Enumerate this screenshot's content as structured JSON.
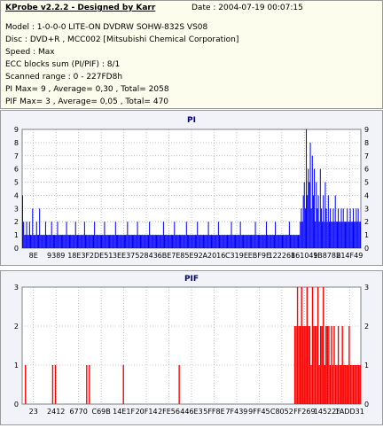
{
  "header": {
    "title": "KProbe v2.2.2 - Designed by Karr",
    "date": "Date : 2004-07-19 00:07:15",
    "lines": [
      "Model : 1-0-0-0 LITE-ON DVDRW SOHW-832S  VS08",
      "Disc : DVD+R , MCC002 [Mitsubishi Chemical Corporation]",
      "Speed : Max",
      "ECC blocks sum (PI/PIF) : 8/1",
      "Scanned range : 0 - 227FD8h",
      "PI Max= 9 , Average= 0,30 , Total= 2058",
      "PIF Max= 3 , Average= 0,05 , Total= 470"
    ]
  },
  "colors": {
    "pi": "#0000ff",
    "pif": "#ff0000",
    "title": "#000080",
    "grid": "#9a9a9a"
  },
  "chart_data": [
    {
      "type": "bar",
      "title": "PI",
      "ylim": [
        0,
        9
      ],
      "y_ticks": [
        0,
        1,
        2,
        3,
        4,
        5,
        6,
        7,
        8,
        9
      ],
      "x_tick_labels": [
        "8E",
        "9389",
        "18E3F",
        "2DE51",
        "3EE37",
        "52843",
        "6BE7E",
        "85E92",
        "A2016",
        "C319E",
        "EBF9E",
        "122268",
        "161049",
        "1B878B",
        "214F49"
      ],
      "grid": "dashed vertical and horizontal",
      "values": [
        4,
        2,
        1,
        1,
        2,
        1,
        1,
        2,
        1,
        1,
        3,
        1,
        1,
        1,
        2,
        1,
        1,
        3,
        1,
        1,
        1,
        1,
        1,
        2,
        1,
        1,
        1,
        1,
        1,
        2,
        1,
        1,
        1,
        1,
        1,
        2,
        1,
        1,
        1,
        1,
        1,
        1,
        1,
        1,
        2,
        1,
        1,
        1,
        1,
        1,
        1,
        1,
        1,
        2,
        1,
        1,
        1,
        1,
        1,
        1,
        1,
        1,
        2,
        1,
        1,
        1,
        1,
        1,
        1,
        1,
        1,
        1,
        2,
        1,
        1,
        1,
        1,
        1,
        1,
        1,
        1,
        1,
        2,
        1,
        1,
        1,
        1,
        1,
        1,
        1,
        1,
        1,
        1,
        2,
        1,
        1,
        1,
        1,
        1,
        1,
        1,
        1,
        1,
        1,
        1,
        2,
        1,
        1,
        1,
        1,
        1,
        1,
        1,
        1,
        1,
        2,
        1,
        1,
        1,
        1,
        1,
        1,
        1,
        1,
        1,
        1,
        1,
        2,
        1,
        1,
        1,
        1,
        1,
        1,
        1,
        1,
        1,
        1,
        1,
        1,
        1,
        2,
        1,
        1,
        1,
        1,
        1,
        1,
        1,
        1,
        1,
        1,
        2,
        1,
        1,
        1,
        1,
        1,
        1,
        1,
        1,
        1,
        1,
        1,
        2,
        1,
        1,
        1,
        1,
        1,
        1,
        1,
        1,
        1,
        1,
        2,
        1,
        1,
        1,
        1,
        1,
        1,
        1,
        1,
        1,
        1,
        2,
        1,
        1,
        1,
        1,
        1,
        1,
        1,
        1,
        1,
        2,
        1,
        1,
        1,
        1,
        1,
        1,
        1,
        1,
        1,
        1,
        1,
        1,
        2,
        1,
        1,
        1,
        1,
        1,
        1,
        1,
        1,
        2,
        1,
        1,
        1,
        1,
        1,
        1,
        1,
        1,
        1,
        1,
        1,
        1,
        1,
        1,
        2,
        1,
        1,
        1,
        1,
        1,
        1,
        1,
        1,
        1,
        1,
        2,
        1,
        1,
        1,
        1,
        1,
        1,
        1,
        1,
        2,
        1,
        1,
        1,
        1,
        1,
        1,
        1,
        1,
        1,
        1,
        1,
        1,
        1,
        2,
        1,
        1,
        1,
        1,
        1,
        1,
        1,
        1,
        1,
        1,
        2,
        3,
        2,
        4,
        5,
        3,
        9,
        4,
        6,
        5,
        8,
        3,
        7,
        4,
        6,
        2,
        5,
        3,
        4,
        2,
        6,
        3,
        2,
        4,
        2,
        5,
        3,
        2,
        4,
        2,
        3,
        2,
        2,
        3,
        2,
        4,
        2,
        2,
        3,
        2,
        2,
        3,
        2,
        3,
        2,
        2,
        2,
        3,
        2,
        2,
        3,
        2,
        2,
        3,
        2,
        2,
        3,
        2,
        3,
        2,
        2
      ]
    },
    {
      "type": "bar",
      "title": "PIF",
      "ylim": [
        0,
        3
      ],
      "y_ticks": [
        0,
        1,
        2,
        3
      ],
      "x_tick_labels": [
        "23",
        "2412",
        "6770",
        "C69B",
        "14E1F",
        "20F14",
        "2FE56",
        "446E3",
        "5FF8E",
        "7F439",
        "9FF45",
        "C8052",
        "FF269",
        "14522F",
        "1ADD31"
      ],
      "grid": "dashed vertical and horizontal",
      "values": [
        0,
        0,
        1,
        0,
        0,
        0,
        0,
        0,
        0,
        0,
        0,
        0,
        0,
        0,
        0,
        0,
        0,
        0,
        0,
        0,
        0,
        0,
        1,
        0,
        1,
        0,
        0,
        0,
        0,
        0,
        0,
        0,
        0,
        0,
        0,
        0,
        0,
        0,
        0,
        0,
        0,
        0,
        0,
        0,
        0,
        0,
        0,
        1,
        0,
        1,
        0,
        0,
        0,
        0,
        0,
        0,
        0,
        0,
        0,
        0,
        0,
        0,
        0,
        0,
        0,
        0,
        0,
        0,
        0,
        0,
        0,
        0,
        0,
        0,
        1,
        0,
        0,
        0,
        0,
        0,
        0,
        0,
        0,
        0,
        0,
        0,
        0,
        0,
        0,
        0,
        0,
        0,
        0,
        0,
        0,
        0,
        0,
        0,
        0,
        0,
        0,
        0,
        0,
        0,
        0,
        0,
        0,
        0,
        0,
        0,
        0,
        0,
        0,
        0,
        0,
        1,
        0,
        0,
        0,
        0,
        0,
        0,
        0,
        0,
        0,
        0,
        0,
        0,
        0,
        0,
        0,
        0,
        0,
        0,
        0,
        0,
        0,
        0,
        0,
        0,
        0,
        0,
        0,
        0,
        0,
        0,
        0,
        0,
        0,
        0,
        0,
        0,
        0,
        0,
        0,
        0,
        0,
        0,
        0,
        0,
        0,
        0,
        0,
        0,
        0,
        0,
        0,
        0,
        0,
        0,
        0,
        0,
        0,
        0,
        0,
        0,
        0,
        0,
        0,
        0,
        0,
        0,
        0,
        0,
        0,
        0,
        0,
        0,
        0,
        0,
        0,
        0,
        0,
        0,
        0,
        0,
        0,
        0,
        0,
        0,
        2,
        2,
        3,
        2,
        2,
        3,
        2,
        2,
        2,
        3,
        2,
        2,
        1,
        3,
        2,
        2,
        2,
        3,
        1,
        2,
        2,
        3,
        1,
        2,
        2,
        2,
        1,
        2,
        1,
        2,
        1,
        1,
        2,
        1,
        1,
        2,
        1,
        1,
        1,
        1,
        2,
        1,
        1,
        1,
        1,
        1,
        1,
        1,
        1
      ]
    }
  ]
}
